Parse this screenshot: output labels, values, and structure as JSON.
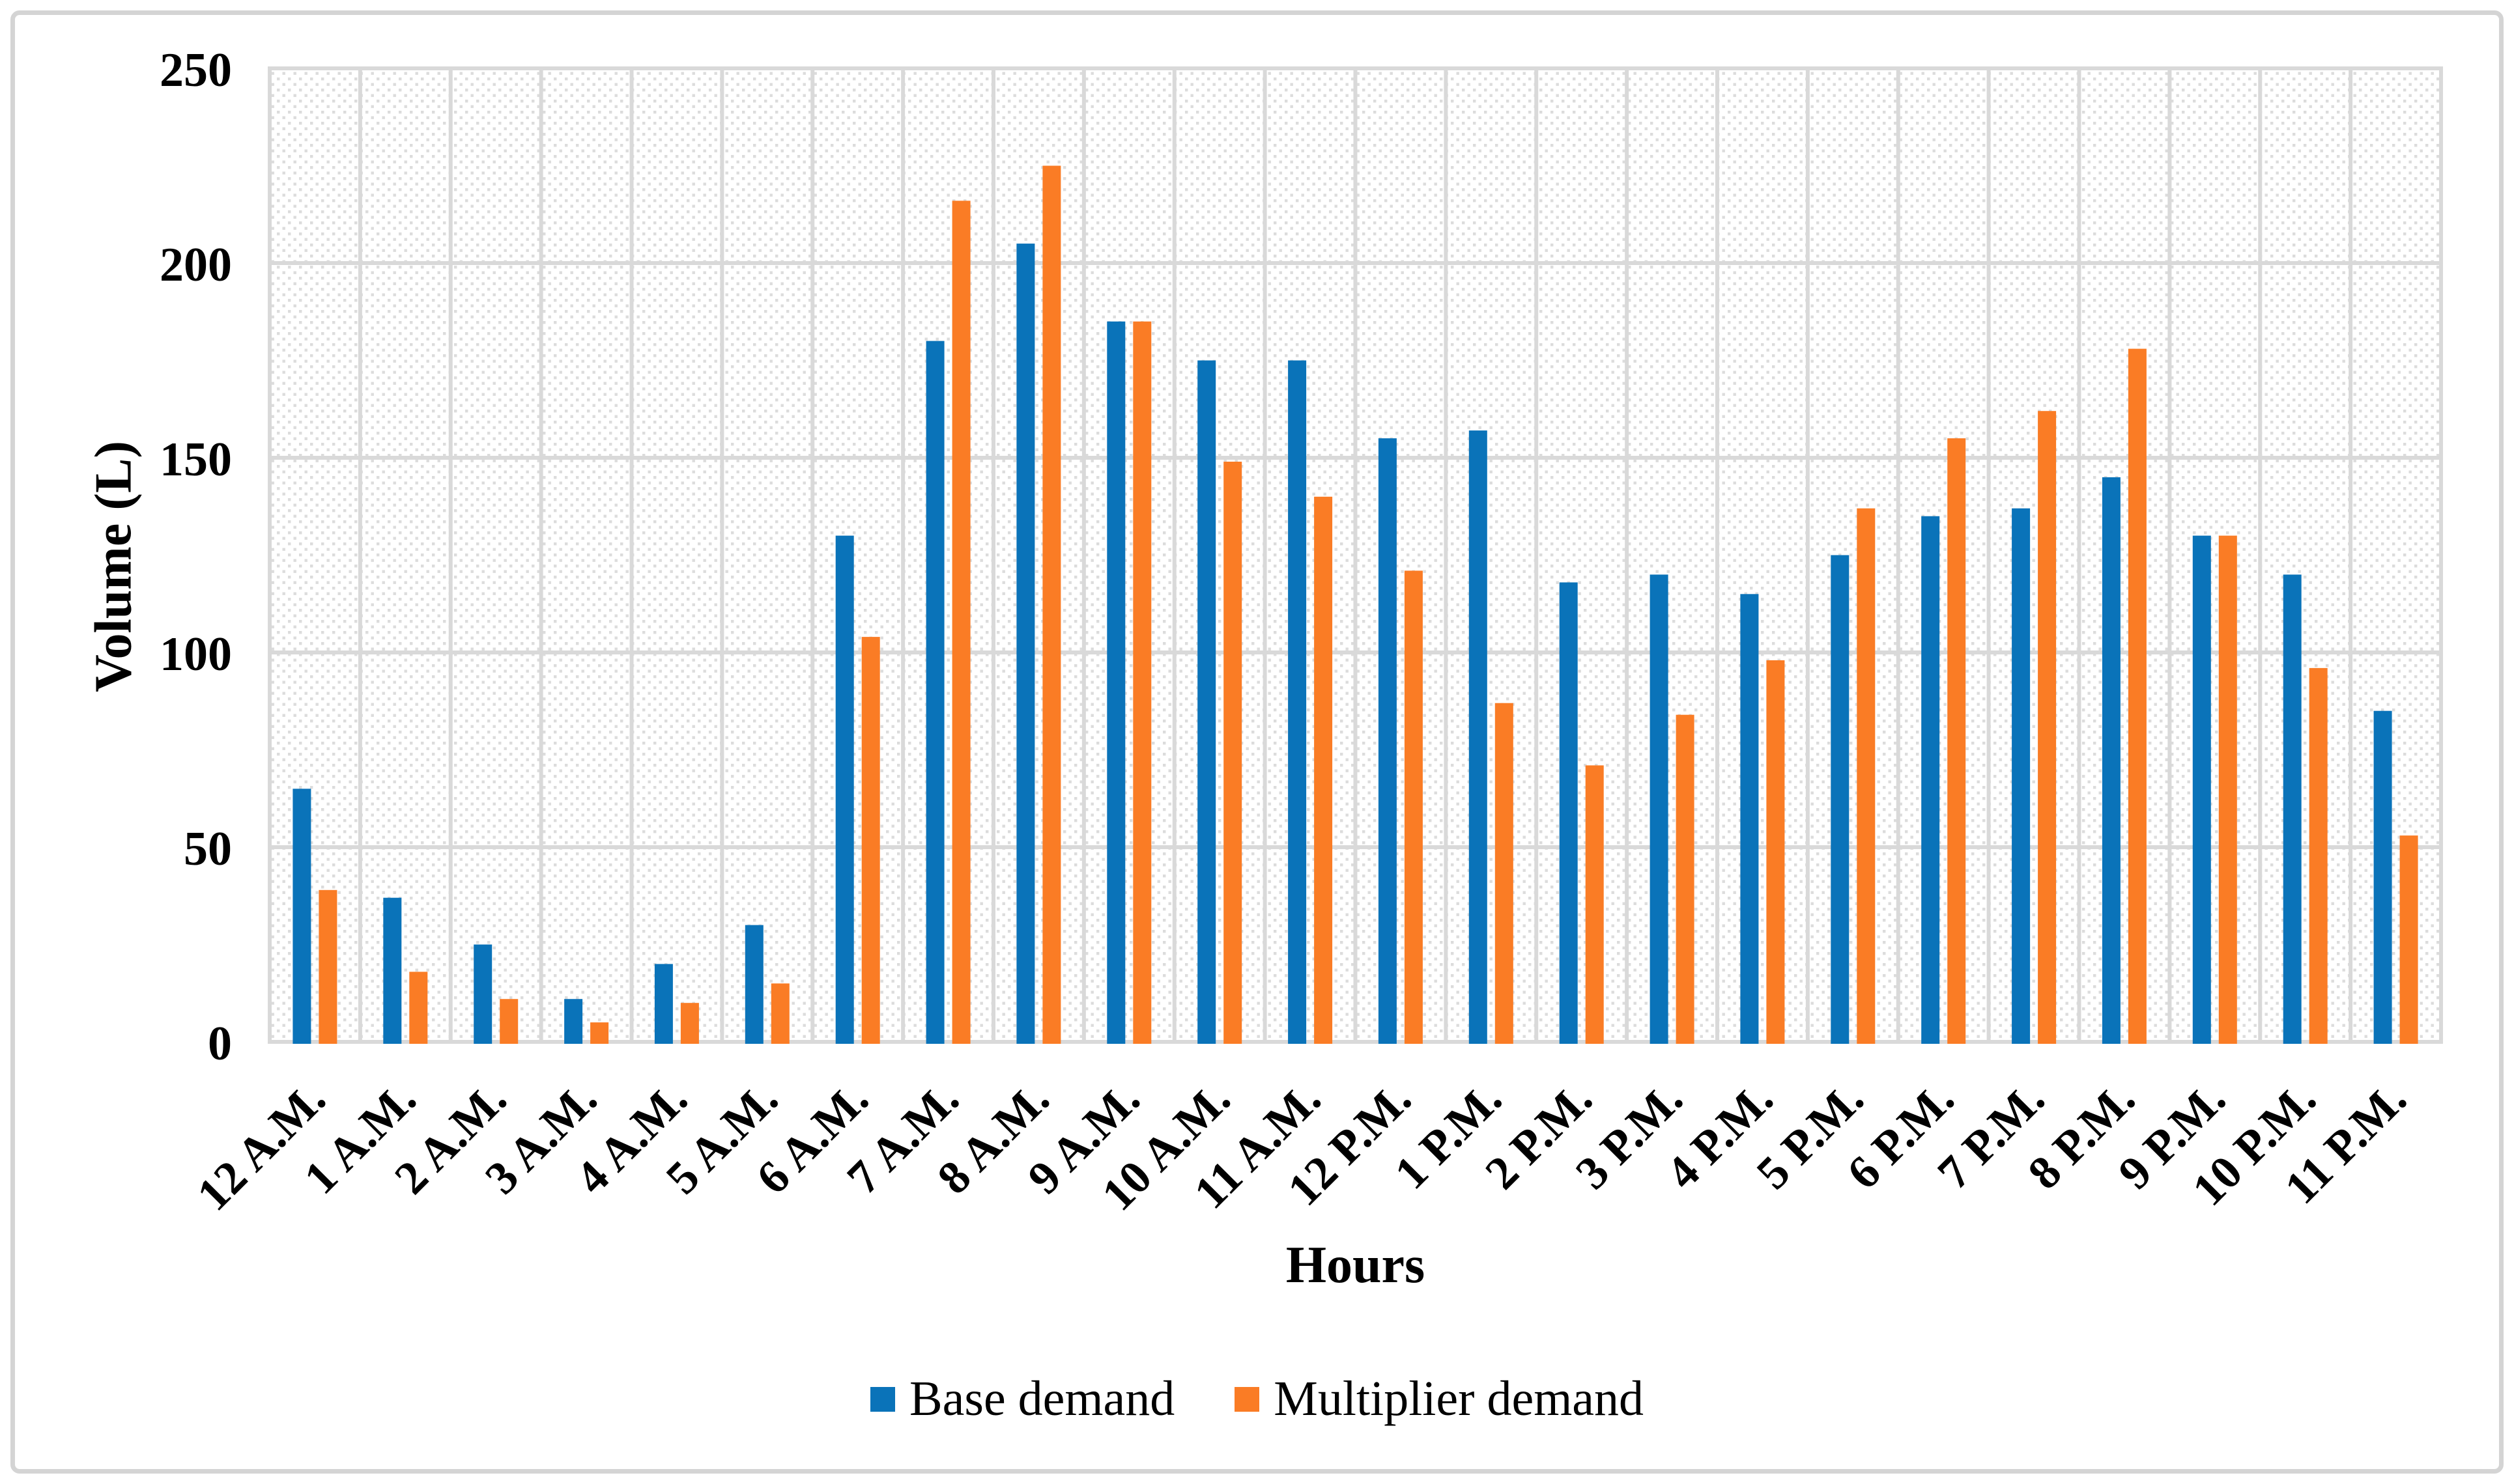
{
  "figure": {
    "background": "#ffffff",
    "border_color": "#d4d4d4"
  },
  "chart_data": {
    "type": "bar",
    "title": "",
    "xlabel": "Hours",
    "ylabel": "Volume (L)",
    "categories": [
      "12 A.M.",
      "1 A.M.",
      "2 A.M.",
      "3 A.M.",
      "4 A.M.",
      "5 A.M.",
      "6 A.M.",
      "7 A.M.",
      "8 A.M.",
      "9 A.M.",
      "10 A.M.",
      "11 A.M.",
      "12 P.M.",
      "1 P.M.",
      "2 P.M.",
      "3 P.M.",
      "4 P.M.",
      "5 P.M.",
      "6 P.M.",
      "7 P.M.",
      "8 P.M.",
      "9 P.M.",
      "10 P.M.",
      "11 P.M."
    ],
    "series": [
      {
        "name": "Base demand",
        "color": "#0a73b9",
        "values": [
          65,
          37,
          25,
          11,
          20,
          30,
          130,
          180,
          205,
          185,
          175,
          175,
          155,
          157,
          118,
          120,
          115,
          125,
          135,
          137,
          145,
          130,
          120,
          85
        ]
      },
      {
        "name": "Multiplier demand",
        "color": "#fa7c25",
        "values": [
          39,
          18,
          11,
          5,
          10,
          15,
          104,
          216,
          225,
          185,
          149,
          140,
          121,
          87,
          71,
          84,
          98,
          137,
          155,
          162,
          178,
          130,
          96,
          53
        ]
      }
    ],
    "ylim": [
      0,
      250
    ],
    "yticks": [
      0,
      50,
      100,
      150,
      200,
      250
    ],
    "grid": "horizontal every 50 and vertical per category, color #d9d9d9",
    "plot_background": "white with light gray diagonal dotted hatch",
    "legend_position": "bottom center",
    "tick_color": "#000000",
    "gridline_color": "#d9d9d9",
    "hatch_color": "#dcdcdc"
  }
}
